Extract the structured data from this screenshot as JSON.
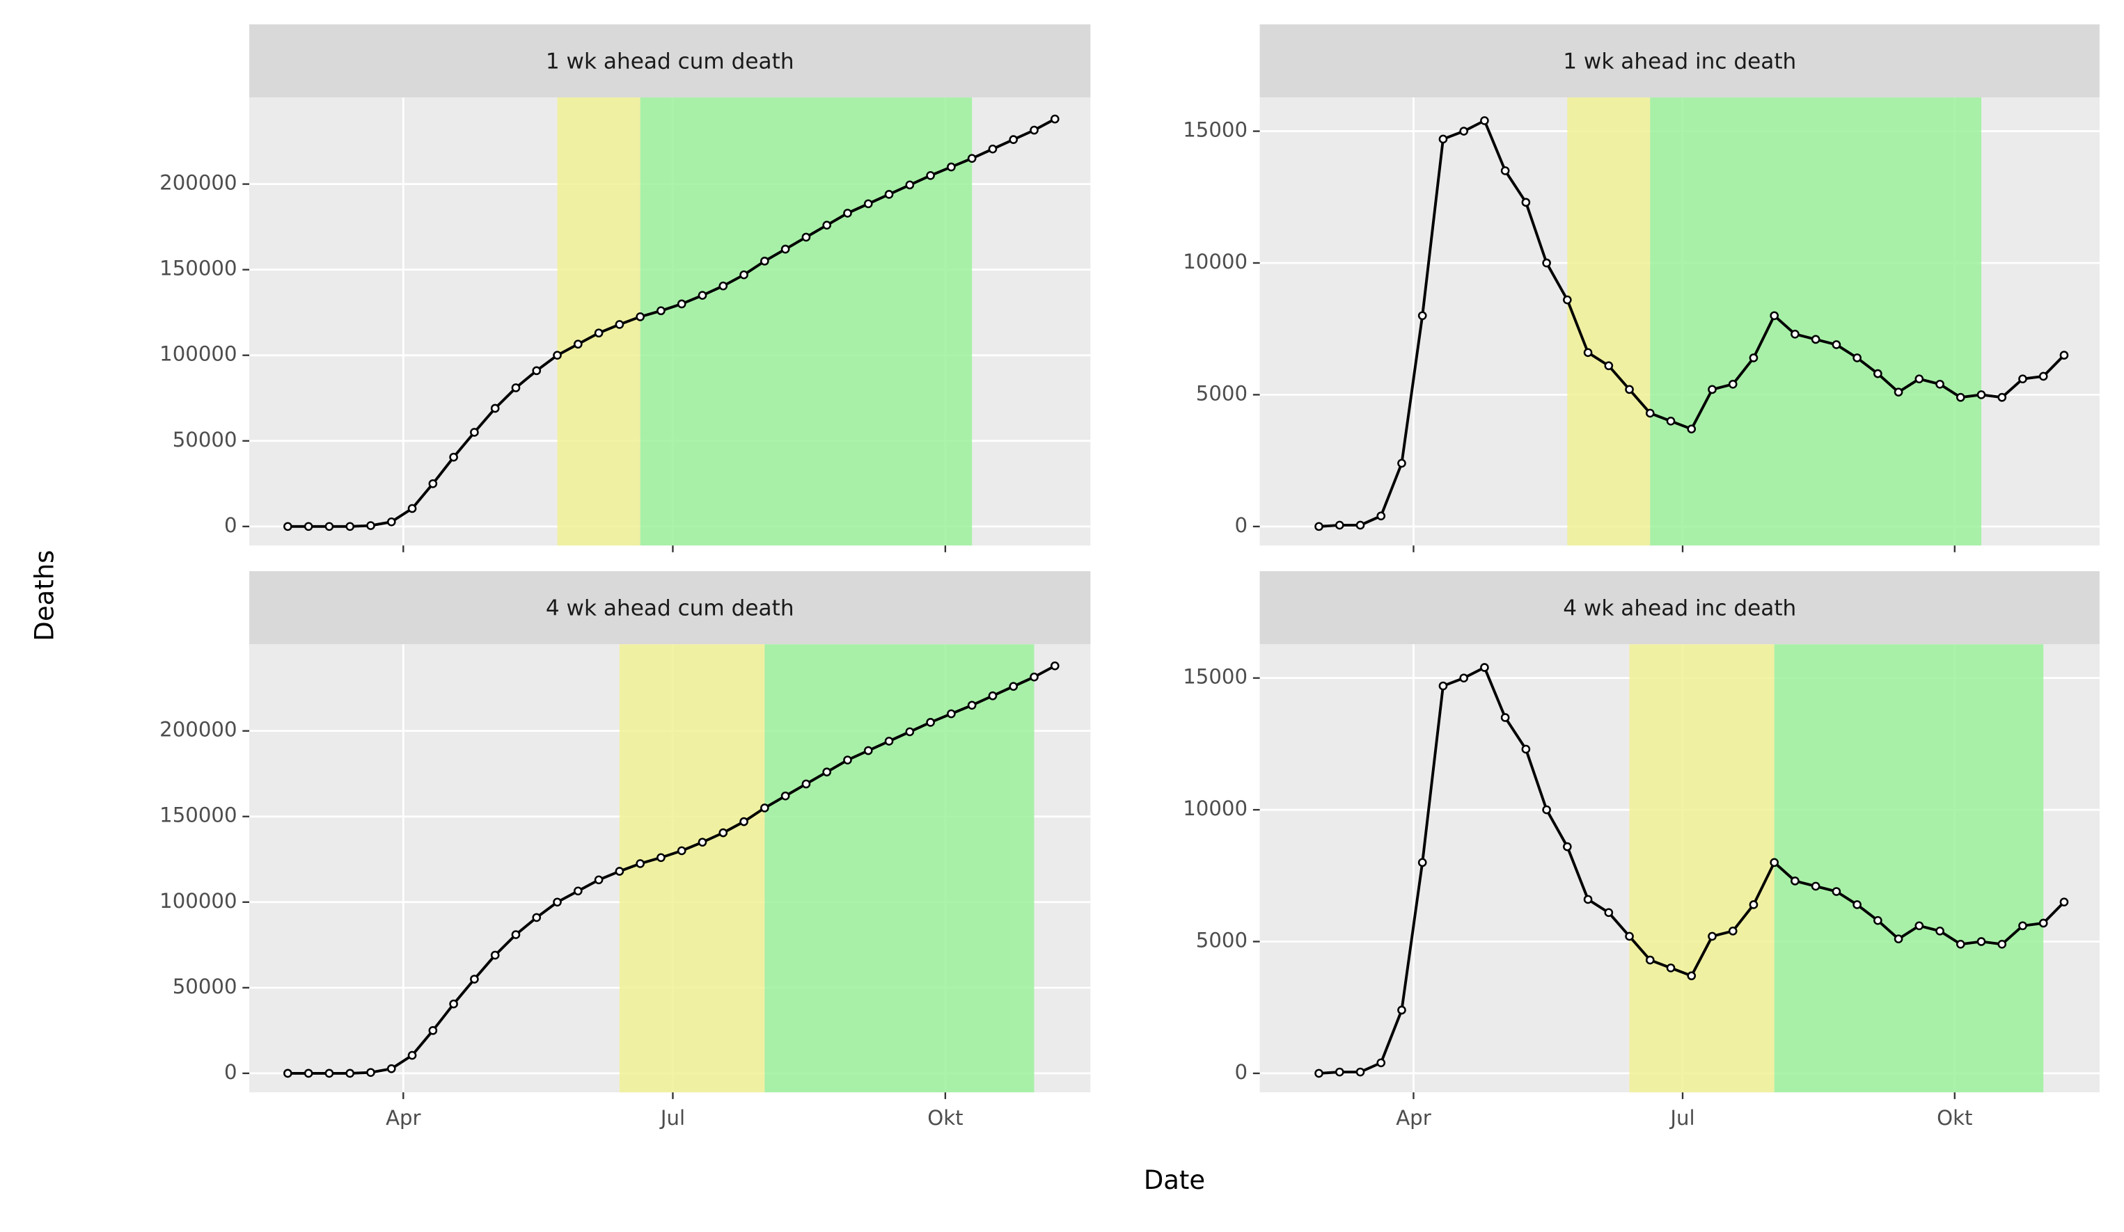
{
  "xlabel": "Date",
  "ylabel": "Deaths",
  "chart_data": [
    {
      "type": "line",
      "title": "1 wk ahead cum death",
      "color": "#000000",
      "x": [
        53,
        60,
        67,
        74,
        81,
        88,
        95,
        102,
        109,
        116,
        123,
        130,
        137,
        144,
        151,
        158,
        165,
        172,
        179,
        186,
        193,
        200,
        207,
        214,
        221,
        228,
        235,
        242,
        249,
        256,
        263,
        270,
        277,
        284,
        291,
        298,
        305,
        312
      ],
      "values": [
        0,
        0,
        0,
        0,
        500,
        2700,
        10500,
        25000,
        40500,
        55000,
        69000,
        81000,
        91000,
        100000,
        106500,
        113000,
        118000,
        122500,
        126000,
        130000,
        135000,
        140500,
        147000,
        155000,
        162000,
        169000,
        176000,
        183000,
        188500,
        194000,
        199500,
        205000,
        210000,
        215000,
        220500,
        226000,
        231500,
        238000
      ],
      "xlim": [
        40,
        324
      ],
      "xticks": [
        92,
        183,
        275
      ],
      "ylim": [
        -11100,
        250600
      ],
      "yticks": [
        0,
        50000,
        100000,
        150000,
        200000
      ],
      "bands": [
        {
          "xlim": [
            144,
            172
          ],
          "color": "#f1f195"
        },
        {
          "xlim": [
            172,
            284
          ],
          "color": "#9cf19c"
        }
      ]
    },
    {
      "type": "line",
      "title": "1 wk ahead inc death",
      "color": "#000000",
      "x": [
        60,
        67,
        74,
        81,
        88,
        95,
        102,
        109,
        116,
        123,
        130,
        137,
        144,
        151,
        158,
        165,
        172,
        179,
        186,
        193,
        200,
        207,
        214,
        221,
        228,
        235,
        242,
        249,
        256,
        263,
        270,
        277,
        284,
        291,
        298,
        305,
        312
      ],
      "values": [
        0,
        50,
        50,
        400,
        2400,
        8000,
        14700,
        15000,
        15400,
        13500,
        12300,
        10000,
        8600,
        6600,
        6100,
        5200,
        4300,
        4000,
        3700,
        5200,
        5400,
        6400,
        8000,
        7300,
        7100,
        6900,
        6400,
        5800,
        5100,
        5600,
        5400,
        4900,
        5000,
        4900,
        5600,
        5700,
        6500
      ],
      "xlim": [
        40,
        324
      ],
      "xticks": [
        92,
        183,
        275
      ],
      "ylim": [
        -720,
        16280
      ],
      "yticks": [
        0,
        5000,
        10000,
        15000
      ],
      "bands": [
        {
          "xlim": [
            144,
            172
          ],
          "color": "#f1f195"
        },
        {
          "xlim": [
            172,
            284
          ],
          "color": "#9cf19c"
        }
      ]
    },
    {
      "type": "line",
      "title": "4 wk ahead cum death",
      "color": "#000000",
      "x": [
        53,
        60,
        67,
        74,
        81,
        88,
        95,
        102,
        109,
        116,
        123,
        130,
        137,
        144,
        151,
        158,
        165,
        172,
        179,
        186,
        193,
        200,
        207,
        214,
        221,
        228,
        235,
        242,
        249,
        256,
        263,
        270,
        277,
        284,
        291,
        298,
        305,
        312
      ],
      "values": [
        0,
        0,
        0,
        0,
        500,
        2700,
        10500,
        25000,
        40500,
        55000,
        69000,
        81000,
        91000,
        100000,
        106500,
        113000,
        118000,
        122500,
        126000,
        130000,
        135000,
        140500,
        147000,
        155000,
        162000,
        169000,
        176000,
        183000,
        188500,
        194000,
        199500,
        205000,
        210000,
        215000,
        220500,
        226000,
        231500,
        238000
      ],
      "xlim": [
        40,
        324
      ],
      "xticks": [
        {
          "value": 92,
          "label": "Apr"
        },
        {
          "value": 183,
          "label": "Jul"
        },
        {
          "value": 275,
          "label": "Okt"
        }
      ],
      "ylim": [
        -11100,
        250600
      ],
      "yticks": [
        0,
        50000,
        100000,
        150000,
        200000
      ],
      "bands": [
        {
          "xlim": [
            165,
            214
          ],
          "color": "#f1f195"
        },
        {
          "xlim": [
            214,
            305
          ],
          "color": "#9cf19c"
        }
      ]
    },
    {
      "type": "line",
      "title": "4 wk ahead inc death",
      "color": "#000000",
      "x": [
        60,
        67,
        74,
        81,
        88,
        95,
        102,
        109,
        116,
        123,
        130,
        137,
        144,
        151,
        158,
        165,
        172,
        179,
        186,
        193,
        200,
        207,
        214,
        221,
        228,
        235,
        242,
        249,
        256,
        263,
        270,
        277,
        284,
        291,
        298,
        305,
        312
      ],
      "values": [
        0,
        50,
        50,
        400,
        2400,
        8000,
        14700,
        15000,
        15400,
        13500,
        12300,
        10000,
        8600,
        6600,
        6100,
        5200,
        4300,
        4000,
        3700,
        5200,
        5400,
        6400,
        8000,
        7300,
        7100,
        6900,
        6400,
        5800,
        5100,
        5600,
        5400,
        4900,
        5000,
        4900,
        5600,
        5700,
        6500
      ],
      "xlim": [
        40,
        324
      ],
      "xticks": [
        {
          "value": 92,
          "label": "Apr"
        },
        {
          "value": 183,
          "label": "Jul"
        },
        {
          "value": 275,
          "label": "Okt"
        }
      ],
      "ylim": [
        -720,
        16280
      ],
      "yticks": [
        0,
        5000,
        10000,
        15000
      ],
      "bands": [
        {
          "xlim": [
            165,
            214
          ],
          "color": "#f1f195"
        },
        {
          "xlim": [
            214,
            305
          ],
          "color": "#9cf19c"
        }
      ]
    }
  ]
}
